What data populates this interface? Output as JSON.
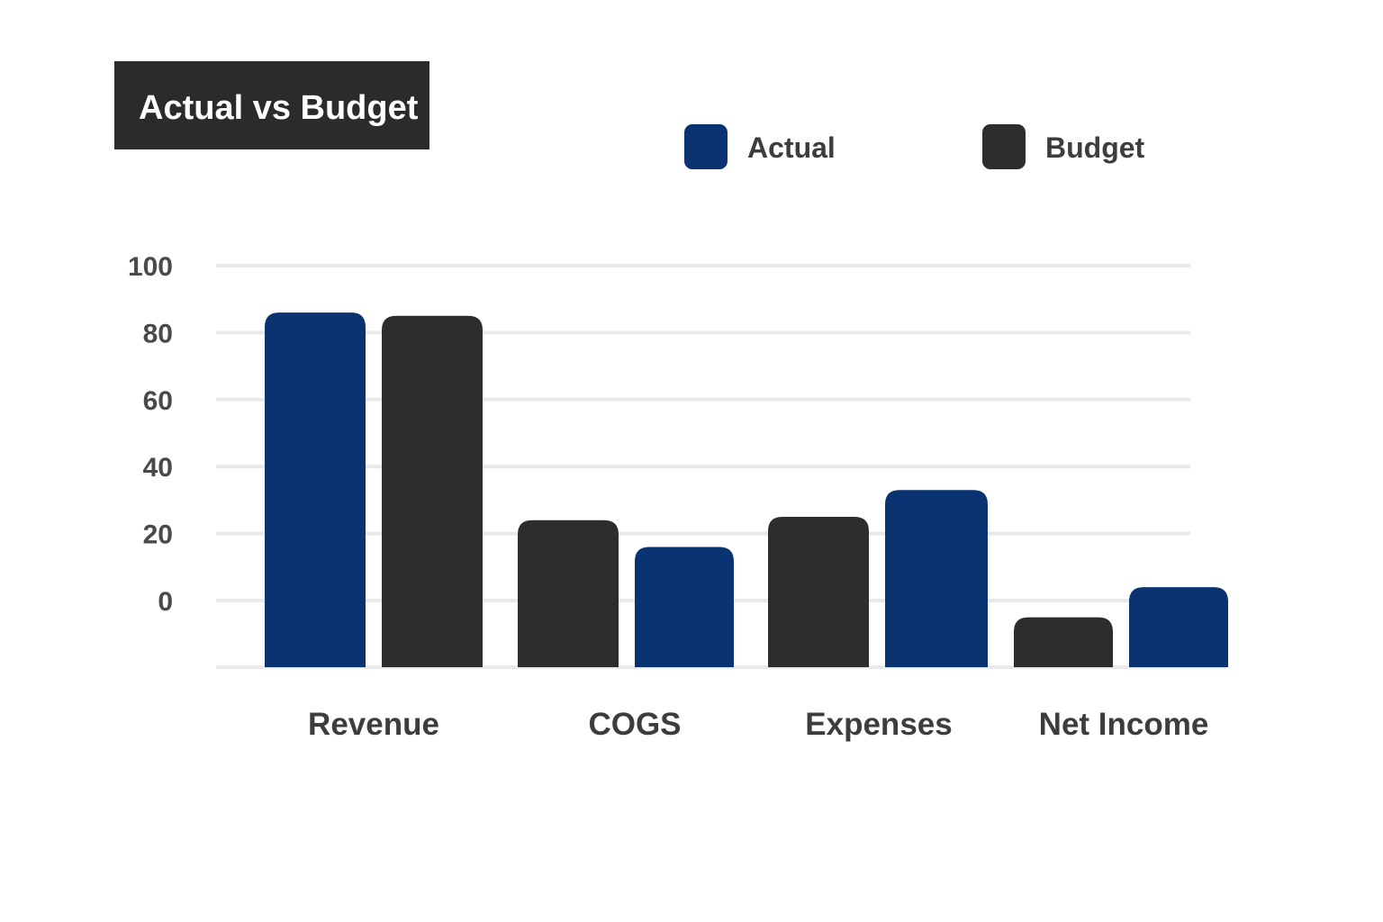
{
  "chart_data": {
    "type": "bar",
    "title": "Actual vs Budget",
    "xlabel": "",
    "ylabel": "",
    "categories": [
      "Revenue",
      "COGS",
      "Expenses",
      "Net Income"
    ],
    "yticks": [
      100,
      80,
      60,
      40,
      20,
      0
    ],
    "ylim": [
      -20,
      100
    ],
    "grid": true,
    "legend_position": "top-right",
    "series": [
      {
        "name": "Actual",
        "color": "#0a3371",
        "values": [
          86,
          16,
          33,
          4
        ]
      },
      {
        "name": "Budget",
        "color": "#2d2d2d",
        "values": [
          85,
          24,
          25,
          -5
        ]
      }
    ],
    "bar_series_order": [
      [
        "Actual",
        "Budget"
      ],
      [
        "Budget",
        "Actual"
      ],
      [
        "Budget",
        "Actual"
      ],
      [
        "Budget",
        "Actual"
      ]
    ]
  }
}
